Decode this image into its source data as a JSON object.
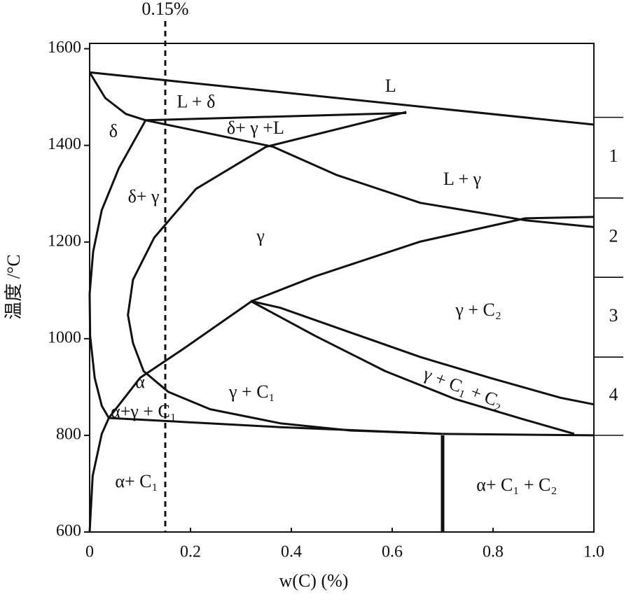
{
  "chart_data": {
    "type": "phase",
    "x_label": "w(C) (%)",
    "y_label": "温度 /°C",
    "xlim": [
      0,
      1
    ],
    "ylim": [
      600,
      1611
    ],
    "xticks": [
      0,
      0.2,
      0.4,
      0.6,
      0.8,
      {
        "value": 1,
        "label": "1.0"
      }
    ],
    "yticks": [
      600,
      800,
      1000,
      1200,
      1400,
      1600
    ],
    "color": "#111111",
    "series": [
      {
        "x": [
          0,
          1
        ],
        "values": [
          1551,
          1443
        ]
      },
      {
        "x": [
          0,
          0.031,
          0.072,
          0.111
        ],
        "values": [
          1551,
          1498,
          1465,
          1452
        ]
      },
      {
        "x": [
          0.111,
          0.628
        ],
        "values": [
          1452,
          1467
        ]
      },
      {
        "x": [
          0.111,
          0.058,
          0.024,
          0.007,
          0,
          0.001,
          0.01,
          0.024,
          0.038
        ],
        "values": [
          1452,
          1353,
          1266,
          1180,
          1093,
          1006,
          919,
          861,
          836
        ]
      },
      {
        "x": [
          0.628,
          0.35,
          0.211,
          0.128,
          0.086,
          0.076,
          0.086,
          0.107,
          0.156,
          0.239,
          0.378,
          0.517,
          0.697
        ],
        "values": [
          1469,
          1397,
          1310,
          1209,
          1122,
          1049,
          991,
          933,
          890,
          854,
          825,
          810,
          803
        ]
      },
      {
        "x": [
          0.111,
          0.364,
          0.489,
          0.656,
          0.864,
          1
        ],
        "values": [
          1452,
          1397,
          1339,
          1281,
          1245,
          1231
        ]
      },
      {
        "x": [
          0,
          0.006,
          0.024,
          0.038,
          0.1,
          0.183,
          0.322,
          0.447,
          0.656,
          0.864,
          1
        ],
        "values": [
          600,
          716,
          803,
          836,
          919,
          977,
          1078,
          1129,
          1201,
          1249,
          1252
        ]
      },
      {
        "x": [
          0.038,
          0.378,
          0.697,
          1
        ],
        "values": [
          836,
          817,
          803,
          800
        ]
      },
      {
        "x": [
          0.319,
          0.447,
          0.586,
          0.725,
          0.864,
          0.961
        ],
        "values": [
          1078,
          1006,
          933,
          875,
          832,
          803
        ]
      },
      {
        "x": [
          0.319,
          0.378,
          0.517,
          0.656,
          0.794,
          0.933,
          1
        ],
        "values": [
          1078,
          1064,
          1013,
          962,
          919,
          878,
          864
        ]
      },
      {
        "x": [
          0.7,
          0.7
        ],
        "values": [
          800,
          600
        ],
        "style": "bold"
      }
    ],
    "marker_line": {
      "x": 0.15,
      "label": "0.15%",
      "style": "dashed"
    },
    "annotations": [
      {
        "text": "L",
        "x": 0.597,
        "y": 1520
      },
      {
        "text": "L + δ",
        "x": 0.211,
        "y": 1487
      },
      {
        "text": "δ",
        "x": 0.047,
        "y": 1426
      },
      {
        "text": "δ+ γ +L",
        "x": 0.329,
        "y": 1433
      },
      {
        "text": "L + γ",
        "x": 0.739,
        "y": 1327
      },
      {
        "text": "δ+ γ",
        "x": 0.107,
        "y": 1291
      },
      {
        "text": "γ",
        "x": 0.339,
        "y": 1209
      },
      {
        "text": "γ + C₂",
        "x": 0.771,
        "y": 1056
      },
      {
        "text": "α",
        "x": 0.1,
        "y": 907
      },
      {
        "text": "γ + C₁",
        "x": 0.322,
        "y": 887
      },
      {
        "text": "γ + C₁ + C₂",
        "x": 0.74,
        "y": 895
      },
      {
        "text": "α+γ + C₁",
        "x": 0.107,
        "y": 846
      },
      {
        "text": "α+ C₁",
        "x": 0.093,
        "y": 701
      },
      {
        "text": "α+ C₁ + C₂",
        "x": 0.847,
        "y": 694
      }
    ],
    "zones": [
      {
        "label": "1",
        "range": [
          1291,
          1458
        ]
      },
      {
        "label": "2",
        "range": [
          1127,
          1291
        ]
      },
      {
        "label": "3",
        "range": [
          962,
          1127
        ]
      },
      {
        "label": "4",
        "range": [
          800,
          962
        ]
      }
    ]
  }
}
